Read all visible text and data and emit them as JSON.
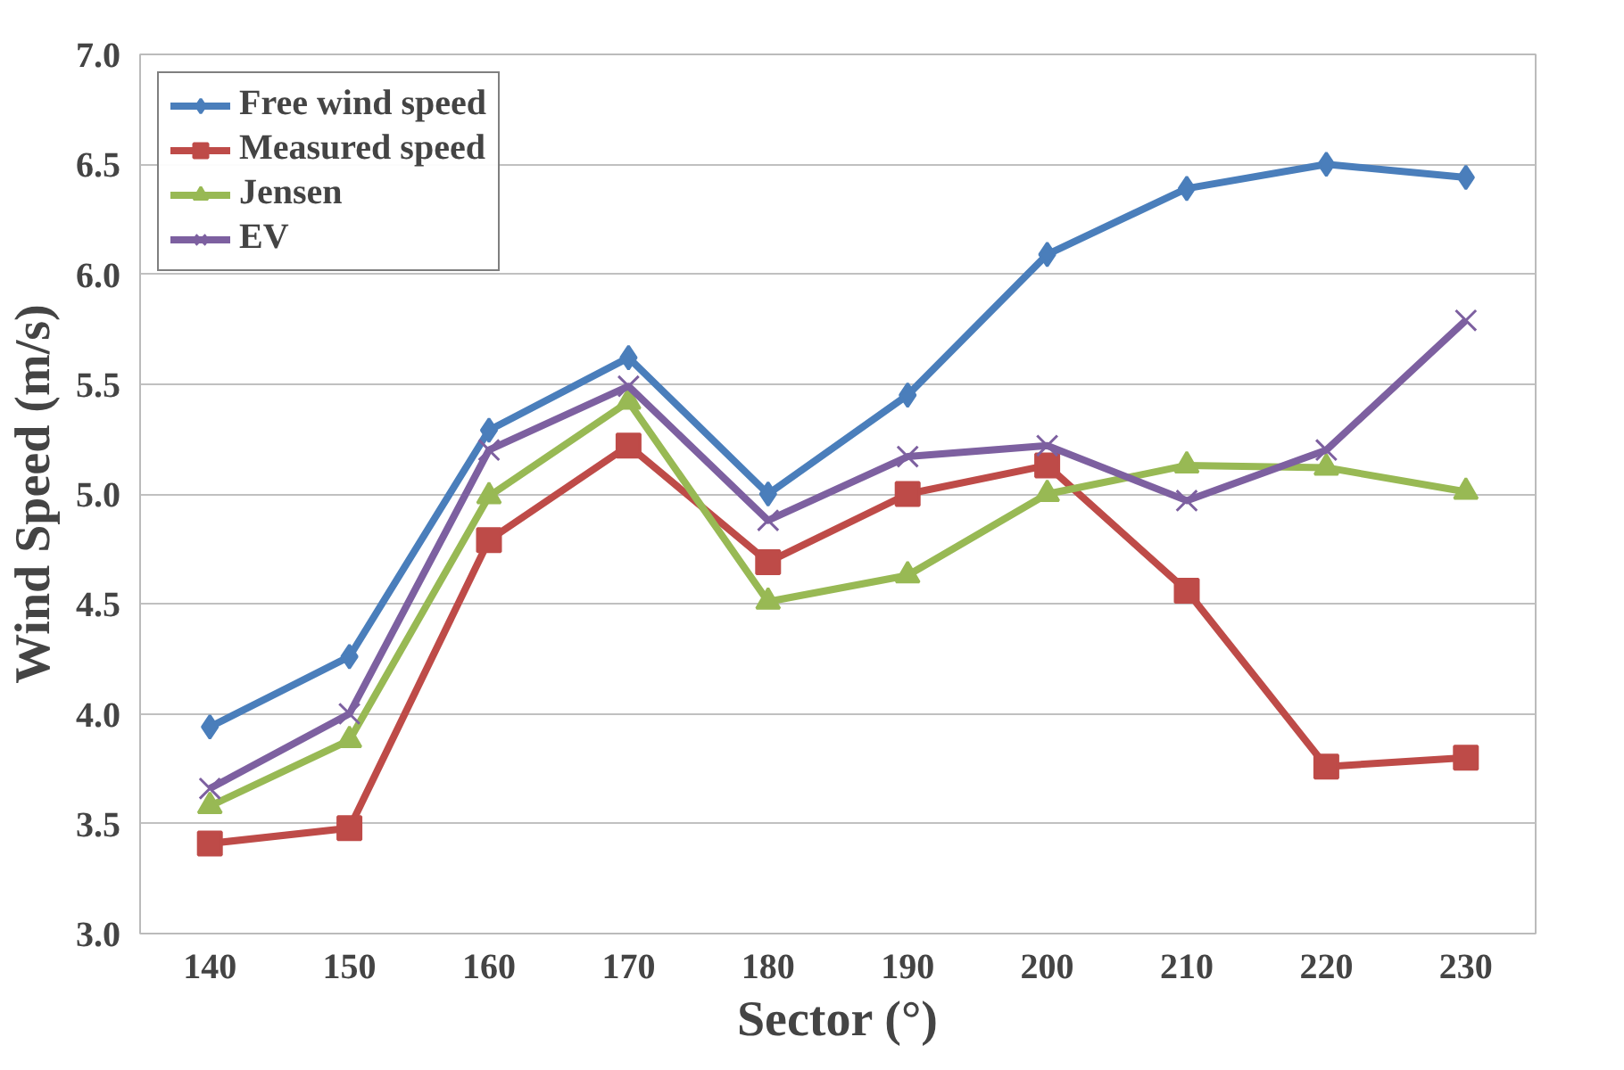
{
  "chart_data": {
    "type": "line",
    "xlabel": "Sector (°)",
    "ylabel": "Wind Speed (m/s)",
    "categories": [
      "140",
      "150",
      "160",
      "170",
      "180",
      "190",
      "200",
      "210",
      "220",
      "230"
    ],
    "series": [
      {
        "name": "Free wind speed",
        "color": "#4a7ebb",
        "marker": "diamond",
        "values": [
          3.94,
          4.26,
          5.29,
          5.62,
          5.0,
          5.45,
          6.09,
          6.39,
          6.5,
          6.44
        ]
      },
      {
        "name": "Measured speed",
        "color": "#be4b48",
        "marker": "square",
        "values": [
          3.41,
          3.48,
          4.79,
          5.22,
          4.69,
          5.0,
          5.13,
          4.56,
          3.76,
          3.8
        ]
      },
      {
        "name": "Jensen",
        "color": "#98b954",
        "marker": "triangle",
        "values": [
          3.58,
          3.88,
          4.99,
          5.42,
          4.51,
          4.63,
          5.0,
          5.13,
          5.12,
          5.01
        ]
      },
      {
        "name": "EV",
        "color": "#7d60a0",
        "marker": "cross",
        "values": [
          3.66,
          4.0,
          5.2,
          5.49,
          4.88,
          5.17,
          5.22,
          4.97,
          5.2,
          5.79
        ]
      }
    ],
    "ylim": [
      3.0,
      7.0
    ],
    "yticks": [
      {
        "value": 3.0,
        "label": "3.0"
      },
      {
        "value": 3.5,
        "label": "3.5"
      },
      {
        "value": 4.0,
        "label": "4.0"
      },
      {
        "value": 4.5,
        "label": "4.5"
      },
      {
        "value": 5.0,
        "label": "5.0"
      },
      {
        "value": 5.5,
        "label": "5.5"
      },
      {
        "value": 6.0,
        "label": "6.0"
      },
      {
        "value": 6.5,
        "label": "6.5"
      },
      {
        "value": 7.0,
        "label": "7.0"
      }
    ],
    "grid": "y",
    "legend": "top left",
    "line_style": "solid"
  }
}
